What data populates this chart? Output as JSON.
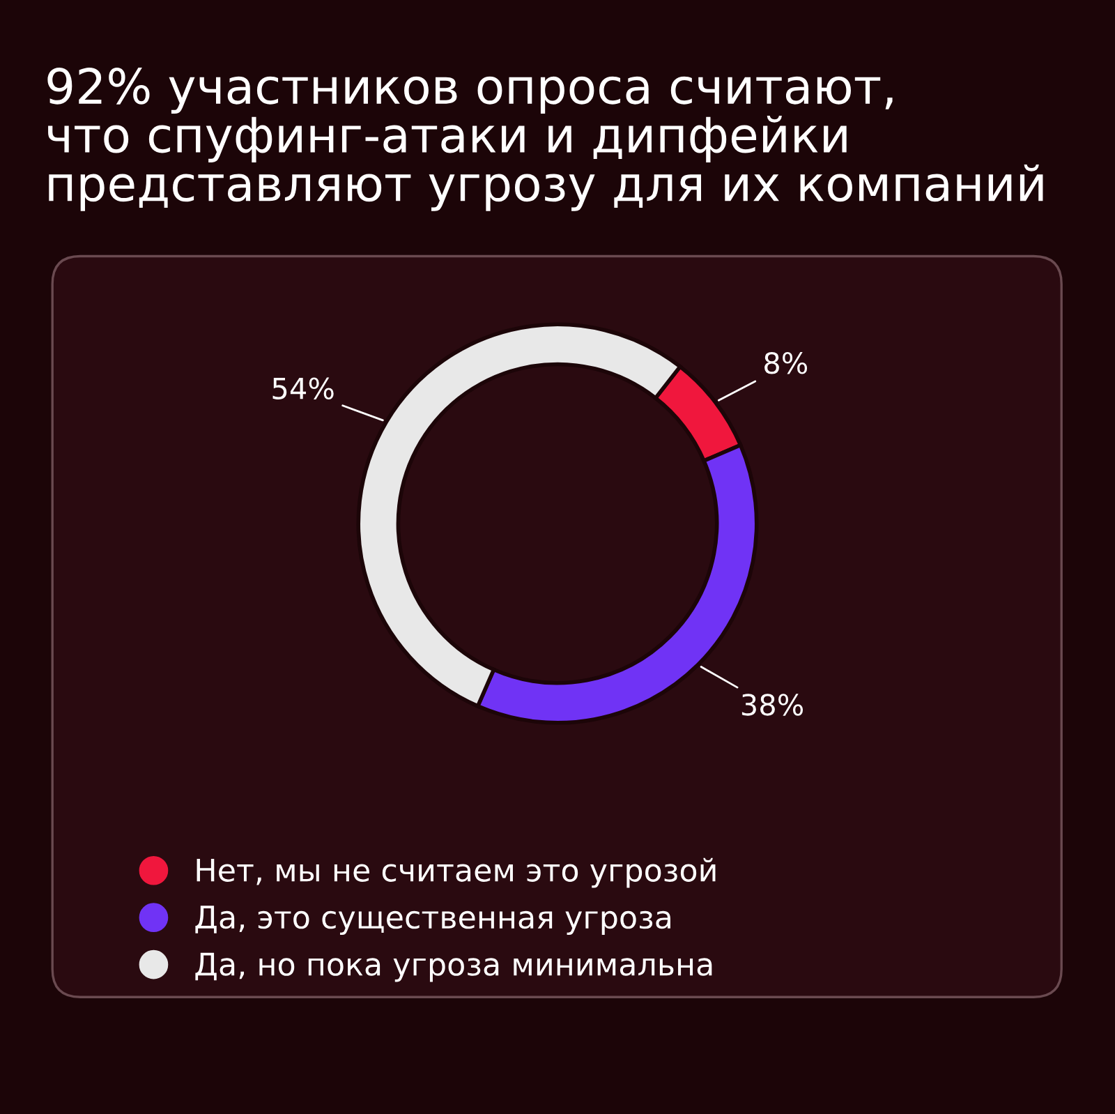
{
  "chart_data": {
    "type": "donut",
    "title": "92% участников опроса считают,\nчто спуфинг-атаки и дипфейки\nпредставляют угрозу для их компаний",
    "categories": [
      "Нет, мы не считаем это угрозой",
      "Да, это существенная угроза",
      "Да, но пока угроза минимальна"
    ],
    "values": [
      8,
      38,
      54
    ],
    "colors": [
      "#f0173d",
      "#7033f5",
      "#e8e8e8"
    ],
    "value_labels": [
      "8%",
      "38%",
      "54%"
    ],
    "legend": "bottom"
  }
}
